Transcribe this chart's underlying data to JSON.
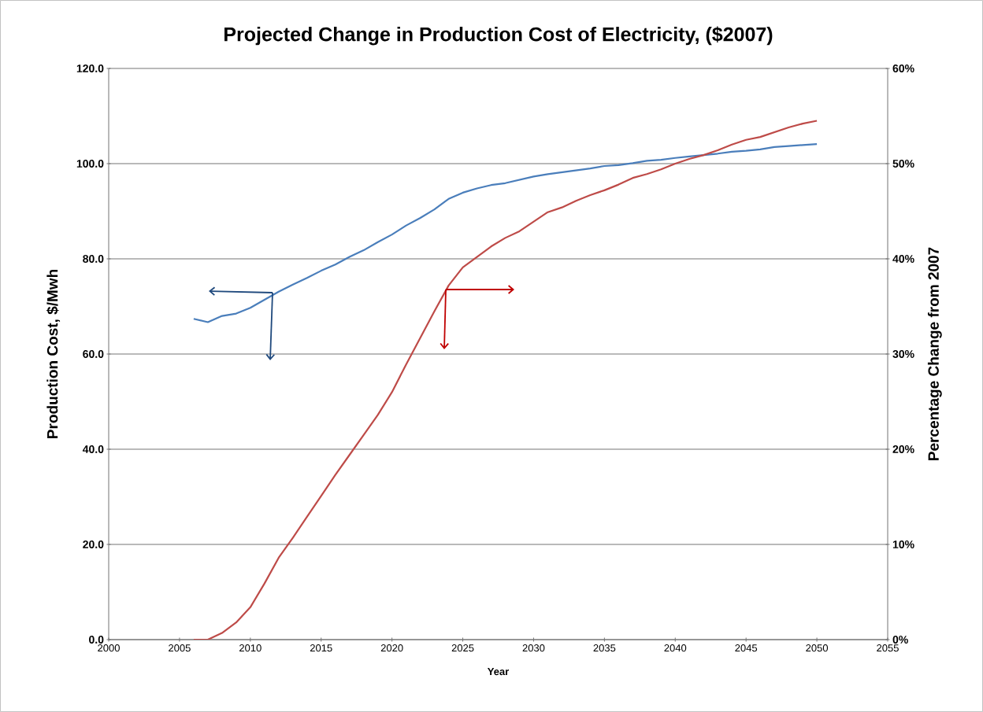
{
  "chart_data": {
    "type": "line",
    "title": "Projected Change in Production Cost of Electricity, ($2007)",
    "xlabel": "Year",
    "ylabel": "Production Cost, $/Mwh",
    "y2label": "Percentage Change from 2007",
    "x": [
      2006,
      2007,
      2008,
      2009,
      2010,
      2011,
      2012,
      2013,
      2014,
      2015,
      2016,
      2017,
      2018,
      2019,
      2020,
      2021,
      2022,
      2023,
      2024,
      2025,
      2026,
      2027,
      2028,
      2029,
      2030,
      2031,
      2032,
      2033,
      2034,
      2035,
      2036,
      2037,
      2038,
      2039,
      2040,
      2041,
      2042,
      2043,
      2044,
      2045,
      2046,
      2047,
      2048,
      2049,
      2050
    ],
    "xlim": [
      2000,
      2055
    ],
    "xticks": [
      2000,
      2005,
      2010,
      2015,
      2020,
      2025,
      2030,
      2035,
      2040,
      2045,
      2050,
      2055
    ],
    "ylim": [
      0,
      120
    ],
    "yticks": [
      {
        "value": 0,
        "label": "0.0"
      },
      {
        "value": 20,
        "label": "20.0"
      },
      {
        "value": 40,
        "label": "40.0"
      },
      {
        "value": 60,
        "label": "60.0"
      },
      {
        "value": 80,
        "label": "80.0"
      },
      {
        "value": 100,
        "label": "100.0"
      },
      {
        "value": 120,
        "label": "120.0"
      }
    ],
    "y2lim": [
      0,
      60
    ],
    "y2ticks": [
      {
        "value": 0,
        "label": "0%"
      },
      {
        "value": 10,
        "label": "10%"
      },
      {
        "value": 20,
        "label": "20%"
      },
      {
        "value": 30,
        "label": "30%"
      },
      {
        "value": 40,
        "label": "40%"
      },
      {
        "value": 50,
        "label": "50%"
      },
      {
        "value": 60,
        "label": "60%"
      }
    ],
    "grid": "y",
    "marker": "none",
    "line_style": "solid",
    "series": [
      {
        "color": "#4a7ebb",
        "values": [
          67.4,
          66.7,
          68.0,
          68.5,
          69.7,
          71.4,
          73.1,
          74.6,
          76.0,
          77.5,
          78.8,
          80.4,
          81.8,
          83.5,
          85.1,
          87.0,
          88.6,
          90.4,
          92.6,
          93.9,
          94.8,
          95.5,
          95.9,
          96.6,
          97.3,
          97.8,
          98.2,
          98.6,
          99.0,
          99.5,
          99.7,
          100.1,
          100.6,
          100.8,
          101.2,
          101.5,
          101.8,
          102.1,
          102.5,
          102.7,
          103.0,
          103.5,
          103.7,
          103.9,
          104.1
        ]
      },
      {
        "color": "#be4b48",
        "axis": "y2",
        "values": [
          0,
          0,
          0.7,
          1.8,
          3.4,
          5.9,
          8.6,
          10.7,
          12.9,
          15.1,
          17.3,
          19.4,
          21.5,
          23.6,
          26.0,
          28.9,
          31.7,
          34.5,
          37.2,
          39.1,
          40.2,
          41.3,
          42.2,
          42.9,
          43.9,
          44.9,
          45.4,
          46.1,
          46.7,
          47.2,
          47.8,
          48.5,
          48.9,
          49.4,
          50.0,
          50.5,
          50.9,
          51.4,
          52.0,
          52.5,
          52.8,
          53.3,
          53.8,
          54.2,
          54.5
        ]
      }
    ]
  }
}
